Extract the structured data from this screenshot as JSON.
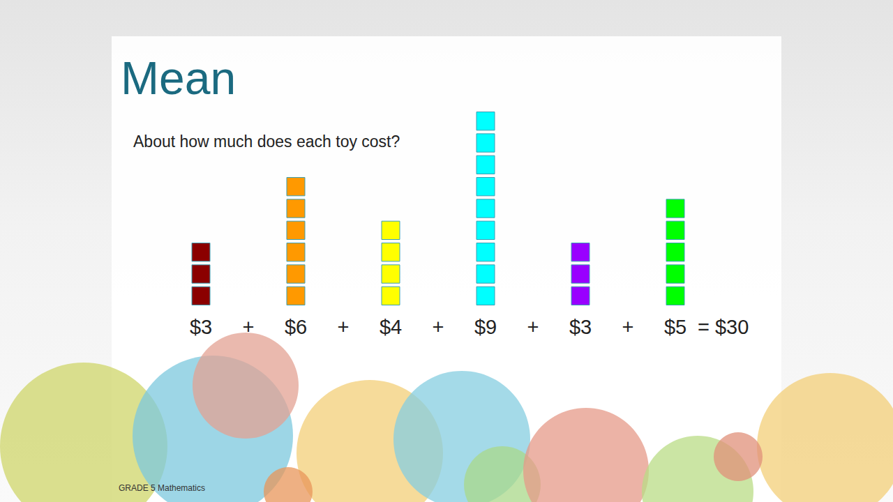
{
  "chart_data": {
    "type": "pictorial_bar",
    "title": "Mean",
    "subtitle": "About how much does each toy cost?",
    "categories": [
      "$3",
      "$6",
      "$4",
      "$9",
      "$3",
      "$5"
    ],
    "values": [
      3,
      6,
      4,
      9,
      3,
      5
    ],
    "colors": [
      "#8b0000",
      "#ff9900",
      "#ffff00",
      "#00ffff",
      "#9900ff",
      "#00ff00"
    ],
    "operator": "+",
    "equals": "=",
    "sum": {
      "value": 30,
      "label": "$30"
    },
    "footer": "GRADE 5 Mathematics",
    "ylim": [
      0,
      9
    ],
    "tick_labels": "x",
    "grid": false
  }
}
